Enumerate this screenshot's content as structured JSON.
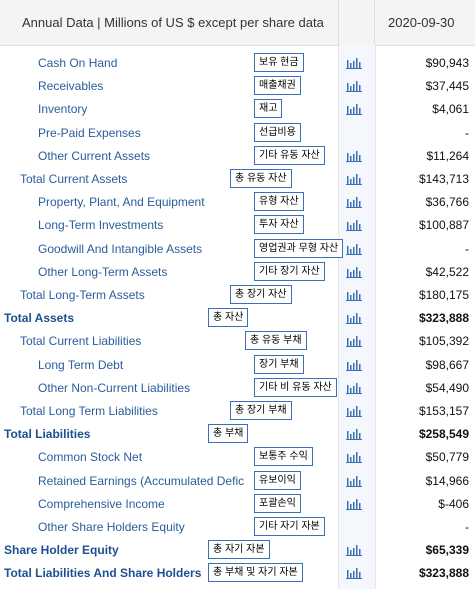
{
  "header": {
    "title": "Annual Data | Millions of US $ except per share data",
    "date": "2020-09-30"
  },
  "rows": [
    {
      "label": "Cash On Hand",
      "kor": "보유 현금",
      "value": "$90,943",
      "chart": true
    },
    {
      "label": "Receivables",
      "kor": "매출채권",
      "value": "$37,445",
      "chart": true
    },
    {
      "label": "Inventory",
      "kor": "재고",
      "value": "$4,061",
      "chart": true
    },
    {
      "label": "Pre-Paid Expenses",
      "kor": "선급비용",
      "value": "-",
      "chart": false
    },
    {
      "label": "Other Current Assets",
      "kor": "기타 유동 자산",
      "value": "$11,264",
      "chart": true
    },
    {
      "label": "Total Current Assets",
      "kor": "총 유동 자산",
      "value": "$143,713",
      "chart": true
    },
    {
      "label": "Property, Plant, And Equipment",
      "kor": "유형 자산",
      "value": "$36,766",
      "chart": true
    },
    {
      "label": "Long-Term Investments",
      "kor": "투자 자산",
      "value": "$100,887",
      "chart": true
    },
    {
      "label": "Goodwill And Intangible Assets",
      "kor": "영업권과 무형 자산",
      "value": "-",
      "chart": true
    },
    {
      "label": "Other Long-Term Assets",
      "kor": "기타 장기 자산",
      "value": "$42,522",
      "chart": true
    },
    {
      "label": "Total Long-Term Assets",
      "kor": "총 장기 자산",
      "value": "$180,175",
      "chart": true
    },
    {
      "label": "Total Assets",
      "kor": "총 자산",
      "value": "$323,888",
      "chart": true
    },
    {
      "label": "Total Current Liabilities",
      "kor": "총 유동 부채",
      "value": "$105,392",
      "chart": true
    },
    {
      "label": "Long Term Debt",
      "kor": "장기 부채",
      "value": "$98,667",
      "chart": true
    },
    {
      "label": "Other Non-Current Liabilities",
      "kor": "기타 비 유동 자산",
      "value": "$54,490",
      "chart": true
    },
    {
      "label": "Total Long Term Liabilities",
      "kor": "총 장기 부채",
      "value": "$153,157",
      "chart": true
    },
    {
      "label": "Total Liabilities",
      "kor": "총 부채",
      "value": "$258,549",
      "chart": true
    },
    {
      "label": "Common Stock Net",
      "kor": "보통주 수익",
      "value": "$50,779",
      "chart": true
    },
    {
      "label": "Retained Earnings (Accumulated Defic",
      "kor": "유보이익",
      "value": "$14,966",
      "chart": true
    },
    {
      "label": "Comprehensive Income",
      "kor": "포괄손익",
      "value": "$-406",
      "chart": true
    },
    {
      "label": "Other Share Holders Equity",
      "kor": "기타 자기 자본",
      "value": "-",
      "chart": false
    },
    {
      "label": "Share Holder Equity",
      "kor": "총 자기 자본",
      "value": "$65,339",
      "chart": true
    },
    {
      "label": "Total Liabilities And Share Holders",
      "kor": "총 부채 및 자기 자본",
      "value": "$323,888",
      "chart": true
    }
  ]
}
